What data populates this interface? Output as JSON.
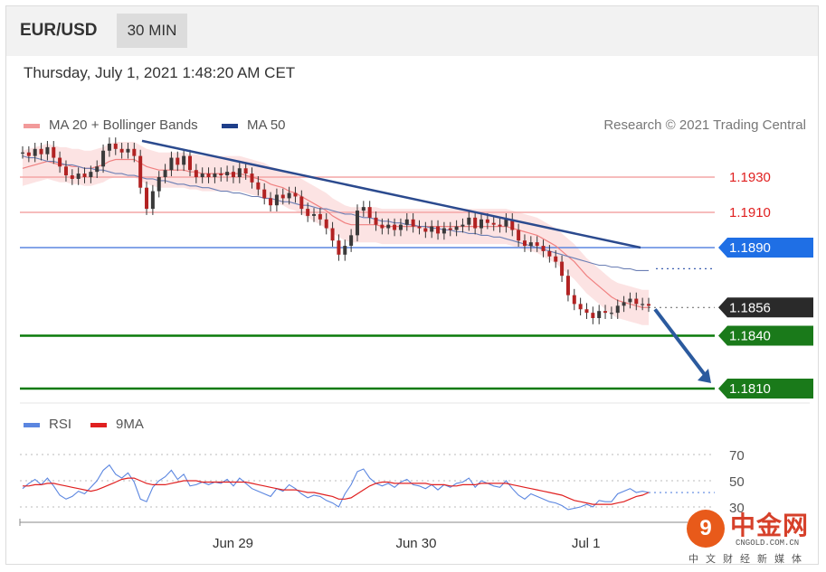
{
  "header": {
    "pair": "EUR/USD",
    "timeframe": "30 MIN"
  },
  "datetime": "Thursday, July 1, 2021 1:48:20 AM CET",
  "legend": {
    "ma20": "MA 20 + Bollinger Bands",
    "ma50": "MA 50",
    "credit": "Research © 2021 Trading Central",
    "ma20_color": "#f29a9a",
    "ma50_color": "#1f3f8a"
  },
  "rsi_legend": {
    "rsi": "RSI",
    "ma9": "9MA",
    "rsi_color": "#5b86e0",
    "ma9_color": "#e02020"
  },
  "watermark": {
    "text": "中金网",
    "domain": "CNGOLD.COM.CN",
    "sub": "中文财经新媒体",
    "glyph": "9"
  },
  "chart_data": {
    "type": "line",
    "title": "EUR/USD",
    "ylim": [
      1.18,
      1.195
    ],
    "x_ticks": [
      "Jun 29",
      "Jun 30",
      "Jul 1"
    ],
    "x_tick_pos": [
      0.271,
      0.504,
      0.72
    ],
    "price_close": [
      1.1944,
      1.1942,
      1.1946,
      1.1943,
      1.1947,
      1.1941,
      1.1936,
      1.1931,
      1.1929,
      1.1932,
      1.193,
      1.1933,
      1.1936,
      1.1945,
      1.1949,
      1.1946,
      1.1944,
      1.1946,
      1.1942,
      1.1924,
      1.1912,
      1.1922,
      1.193,
      1.1934,
      1.1941,
      1.1937,
      1.1942,
      1.1934,
      1.193,
      1.1932,
      1.193,
      1.1932,
      1.1931,
      1.1933,
      1.193,
      1.1935,
      1.1932,
      1.1927,
      1.1923,
      1.1918,
      1.1914,
      1.192,
      1.1918,
      1.1921,
      1.1919,
      1.1912,
      1.1908,
      1.1909,
      1.1906,
      1.1901,
      1.1894,
      1.1886,
      1.1891,
      1.1897,
      1.1911,
      1.1913,
      1.1907,
      1.1903,
      1.1901,
      1.1903,
      1.19,
      1.1903,
      1.1906,
      1.1902,
      1.1901,
      1.1899,
      1.1902,
      1.1898,
      1.1901,
      1.19,
      1.1902,
      1.1903,
      1.1907,
      1.1901,
      1.1906,
      1.1904,
      1.1903,
      1.1902,
      1.1906,
      1.19,
      1.1894,
      1.1891,
      1.1893,
      1.1891,
      1.1888,
      1.1885,
      1.1882,
      1.1874,
      1.1863,
      1.1858,
      1.1855,
      1.1853,
      1.185,
      1.1854,
      1.1853,
      1.1853,
      1.1857,
      1.1859,
      1.1861,
      1.1858,
      1.1858,
      1.1857
    ],
    "ma20": [
      1.1935,
      1.1936,
      1.1937,
      1.1938,
      1.1939,
      1.1938,
      1.1937,
      1.1937,
      1.1936,
      1.1936,
      1.1935,
      1.1935,
      1.1936,
      1.1937,
      1.1939,
      1.194,
      1.194,
      1.194,
      1.194,
      1.1938,
      1.1936,
      1.1935,
      1.1934,
      1.1934,
      1.1934,
      1.1934,
      1.1934,
      1.1933,
      1.1933,
      1.1932,
      1.1932,
      1.1932,
      1.1932,
      1.1932,
      1.1932,
      1.1932,
      1.1931,
      1.193,
      1.1929,
      1.1928,
      1.1926,
      1.1925,
      1.1924,
      1.1922,
      1.1921,
      1.1919,
      1.1917,
      1.1915,
      1.1913,
      1.1911,
      1.1908,
      1.1906,
      1.1904,
      1.1903,
      1.1903,
      1.1903,
      1.1903,
      1.1903,
      1.1902,
      1.1902,
      1.1902,
      1.1902,
      1.1902,
      1.1902,
      1.1902,
      1.1902,
      1.1902,
      1.1902,
      1.1902,
      1.1902,
      1.1902,
      1.1902,
      1.1902,
      1.1902,
      1.1902,
      1.1902,
      1.1902,
      1.1902,
      1.1902,
      1.1901,
      1.19,
      1.1899,
      1.1898,
      1.1897,
      1.1895,
      1.1893,
      1.1891,
      1.1888,
      1.1885,
      1.1882,
      1.1878,
      1.1874,
      1.1871,
      1.1868,
      1.1865,
      1.1862,
      1.186,
      1.1859,
      1.1858,
      1.1857,
      1.1856,
      1.1856
    ],
    "ma50": [
      1.1942,
      1.1941,
      1.1941,
      1.194,
      1.1939,
      1.1939,
      1.1938,
      1.1937,
      1.1937,
      1.1936,
      1.1935,
      1.1935,
      1.1934,
      1.1934,
      1.1933,
      1.1932,
      1.1932,
      1.1931,
      1.1931,
      1.193,
      1.1929,
      1.1929,
      1.1928,
      1.1928,
      1.1927,
      1.1926,
      1.1926,
      1.1925,
      1.1925,
      1.1924,
      1.1924,
      1.1923,
      1.1922,
      1.1922,
      1.1921,
      1.1921,
      1.192,
      1.1919,
      1.1919,
      1.1918,
      1.1918,
      1.1917,
      1.1916,
      1.1916,
      1.1915,
      1.1914,
      1.1914,
      1.1913,
      1.1912,
      1.1912,
      1.1911,
      1.191,
      1.1909,
      1.1909,
      1.1908,
      1.1907,
      1.1907,
      1.1906,
      1.1905,
      1.1905,
      1.1904,
      1.1904,
      1.1903,
      1.1903,
      1.1902,
      1.1902,
      1.1901,
      1.1901,
      1.19,
      1.19,
      1.1899,
      1.1899,
      1.1898,
      1.1898,
      1.1897,
      1.1897,
      1.1896,
      1.1896,
      1.1895,
      1.1894,
      1.1893,
      1.1892,
      1.1891,
      1.189,
      1.1889,
      1.1888,
      1.1887,
      1.1886,
      1.1885,
      1.1884,
      1.1883,
      1.1882,
      1.1881,
      1.188,
      1.188,
      1.1879,
      1.1879,
      1.1878,
      1.1878,
      1.1877,
      1.1877,
      1.1877
    ],
    "bb_half_width": 0.001,
    "trendline": {
      "from": [
        0,
        1.1948
      ],
      "to": [
        0.82,
        1.189
      ],
      "color": "#2b4a8e"
    },
    "levels": [
      {
        "value": 1.193,
        "label": "1.1930",
        "kind": "resistance",
        "color": "#f4a6a6",
        "label_color": "#e02020"
      },
      {
        "value": 1.191,
        "label": "1.1910",
        "kind": "resistance",
        "color": "#f4a6a6",
        "label_color": "#e02020"
      },
      {
        "value": 1.189,
        "label": "1.1890",
        "kind": "pivot",
        "color": "#5b86e0",
        "label_color": "#ffffff",
        "badge": "#1f6fe5"
      },
      {
        "value": 1.1856,
        "label": "1.1856",
        "kind": "last",
        "color": "#555555",
        "label_color": "#ffffff",
        "badge": "#2a2a2a"
      },
      {
        "value": 1.184,
        "label": "1.1840",
        "kind": "support",
        "color": "#0a7a0a",
        "label_color": "#ffffff",
        "badge": "#1a7a1a"
      },
      {
        "value": 1.181,
        "label": "1.1810",
        "kind": "support",
        "color": "#0a7a0a",
        "label_color": "#ffffff",
        "badge": "#1a7a1a"
      }
    ],
    "forecast_arrow": {
      "from": [
        0.82,
        1.1856
      ],
      "to": [
        1.0,
        1.181
      ],
      "color": "#2b5a9e"
    },
    "rsi": {
      "ticks": [
        "70",
        "50",
        "30"
      ],
      "tick_values": [
        70,
        50,
        30
      ],
      "ylim": [
        20,
        80
      ],
      "rsi_values": [
        44,
        48,
        51,
        47,
        52,
        46,
        39,
        36,
        38,
        42,
        40,
        45,
        50,
        58,
        62,
        55,
        52,
        56,
        49,
        36,
        34,
        45,
        50,
        53,
        58,
        51,
        55,
        46,
        47,
        49,
        47,
        49,
        48,
        51,
        46,
        52,
        48,
        44,
        42,
        40,
        38,
        44,
        42,
        47,
        44,
        40,
        37,
        39,
        38,
        35,
        33,
        30,
        40,
        47,
        57,
        59,
        52,
        48,
        46,
        48,
        45,
        49,
        51,
        47,
        46,
        44,
        47,
        43,
        47,
        45,
        48,
        49,
        52,
        45,
        50,
        48,
        46,
        45,
        50,
        44,
        39,
        36,
        40,
        38,
        36,
        34,
        33,
        31,
        28,
        29,
        30,
        32,
        30,
        35,
        34,
        34,
        40,
        42,
        44,
        41,
        42,
        41
      ],
      "ma9_values": [
        46,
        46,
        47,
        47,
        48,
        48,
        47,
        46,
        45,
        44,
        43,
        42,
        43,
        45,
        47,
        49,
        51,
        52,
        52,
        50,
        48,
        47,
        47,
        47,
        48,
        49,
        50,
        50,
        50,
        49,
        49,
        49,
        49,
        49,
        49,
        49,
        49,
        48,
        47,
        46,
        45,
        44,
        43,
        43,
        43,
        42,
        41,
        41,
        40,
        39,
        38,
        36,
        36,
        37,
        40,
        43,
        46,
        48,
        49,
        49,
        48,
        48,
        48,
        48,
        48,
        48,
        47,
        47,
        47,
        46,
        46,
        47,
        47,
        47,
        48,
        48,
        48,
        48,
        48,
        47,
        46,
        45,
        44,
        43,
        42,
        41,
        40,
        39,
        37,
        35,
        34,
        33,
        32,
        32,
        32,
        32,
        33,
        34,
        36,
        38,
        39,
        41
      ]
    }
  }
}
